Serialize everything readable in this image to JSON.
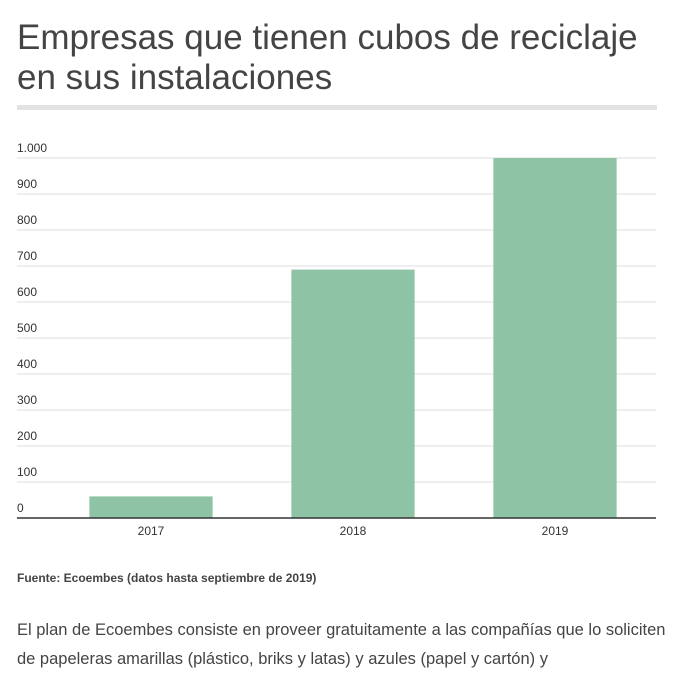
{
  "chart_data": {
    "type": "bar",
    "title": "Empresas que tienen cubos de reciclaje en sus instalaciones",
    "categories": [
      "2017",
      "2018",
      "2019"
    ],
    "values": [
      60,
      690,
      1000
    ],
    "color": "#8fc3a6",
    "ylim": [
      0,
      1000
    ],
    "yticks": [
      0,
      100,
      200,
      300,
      400,
      500,
      600,
      700,
      800,
      900,
      {
        "value": 1000,
        "label": "1.000"
      }
    ],
    "grid": true,
    "source": "Fuente: Ecoembes (datos hasta septiembre de 2019)"
  },
  "body_text": "El plan de Ecoembes consiste en proveer gratuitamente a las compañías que lo soliciten de papeleras amarillas (plástico, briks y latas) y azules (papel y cartón) y"
}
